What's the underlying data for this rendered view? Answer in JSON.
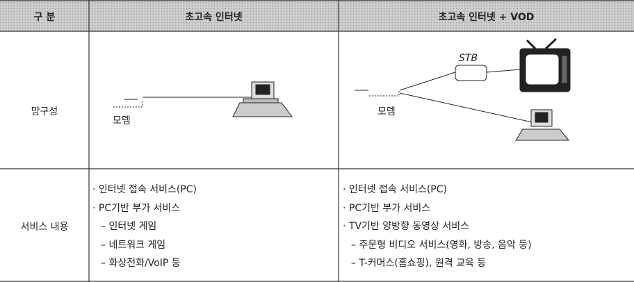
{
  "table": {
    "header": [
      "구 분",
      "초고속 인터넷",
      "초고속 인터넷 + VOD"
    ],
    "network_row": {
      "label": "망구성",
      "internet": {
        "modem_label": "모뎀"
      },
      "vod": {
        "modem_label": "모뎀",
        "stb_label": "STB"
      }
    },
    "service_row": {
      "label": "서비스 내용",
      "internet": [
        "· 인터넷 접속 서비스(PC)",
        "· PC기반 부가 서비스",
        "– 인터넷 게임",
        "– 네트워크 게임",
        "– 화상전화/VoIP 등"
      ],
      "vod": [
        "· 인터넷 접속 서비스(PC)",
        "· PC기반 부가 서비스",
        "· TV기반 양방향 동영상 서비스",
        "– 주문형 비디오 서비스(영화, 방송, 음악 등)",
        "– T-커머스(홈쇼핑), 원격 교육 등"
      ]
    }
  }
}
